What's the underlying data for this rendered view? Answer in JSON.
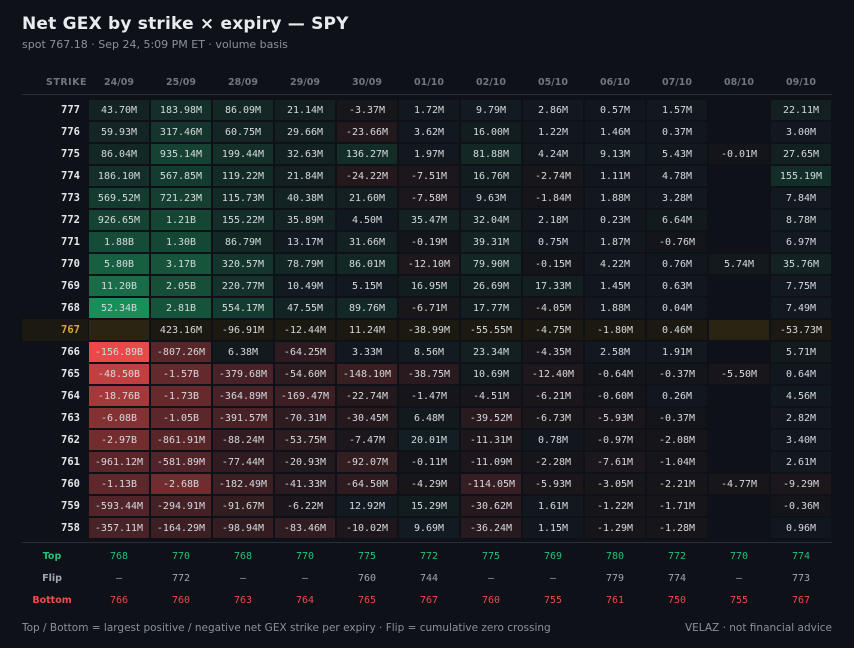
{
  "title": "Net GEX by strike × expiry — SPY",
  "subtitle": "spot 767.18  ·  Sep 24, 5:09 PM ET  ·  volume basis",
  "footer_left": "Top / Bottom = largest positive / negative net GEX strike per expiry  ·  Flip = cumulative zero crossing",
  "footer_right": "VELAZ  ·  not financial advice",
  "colors": {
    "background": "#0e1117",
    "positive": "#1c8f5a",
    "negative": "#e84a4a",
    "spot_row": "#1c1a10",
    "spot_text": "#d4a93a",
    "top": "#26c07a",
    "bottom": "#ef4c4c"
  },
  "chart_data": {
    "type": "heatmap",
    "title": "Net GEX by strike × expiry — SPY",
    "strike_header": "STRIKE",
    "expiries": [
      "24/09",
      "25/09",
      "28/09",
      "29/09",
      "30/09",
      "01/10",
      "02/10",
      "05/10",
      "06/10",
      "07/10",
      "08/10",
      "09/10"
    ],
    "spot_strike": "767",
    "rows": [
      {
        "strike": "777",
        "cells": [
          "43.70M",
          "183.98M",
          "86.09M",
          "21.14M",
          "-3.37M",
          "1.72M",
          "9.79M",
          "2.86M",
          "0.57M",
          "1.57M",
          "",
          "22.11M"
        ]
      },
      {
        "strike": "776",
        "cells": [
          "59.93M",
          "317.46M",
          "60.75M",
          "29.66M",
          "-23.66M",
          "3.62M",
          "16.00M",
          "1.22M",
          "1.46M",
          "0.37M",
          "",
          "3.00M"
        ]
      },
      {
        "strike": "775",
        "cells": [
          "86.04M",
          "935.14M",
          "199.44M",
          "32.63M",
          "136.27M",
          "1.97M",
          "81.88M",
          "4.24M",
          "9.13M",
          "5.43M",
          "-0.01M",
          "27.65M"
        ]
      },
      {
        "strike": "774",
        "cells": [
          "186.10M",
          "567.85M",
          "119.22M",
          "21.84M",
          "-24.22M",
          "-7.51M",
          "16.76M",
          "-2.74M",
          "1.11M",
          "4.78M",
          "",
          "155.19M"
        ]
      },
      {
        "strike": "773",
        "cells": [
          "569.52M",
          "721.23M",
          "115.73M",
          "40.38M",
          "21.60M",
          "-7.58M",
          "9.63M",
          "-1.84M",
          "1.88M",
          "3.28M",
          "",
          "7.84M"
        ]
      },
      {
        "strike": "772",
        "cells": [
          "926.65M",
          "1.21B",
          "155.22M",
          "35.89M",
          "4.50M",
          "35.47M",
          "32.04M",
          "2.18M",
          "0.23M",
          "6.64M",
          "",
          "8.78M"
        ]
      },
      {
        "strike": "771",
        "cells": [
          "1.88B",
          "1.30B",
          "86.79M",
          "13.17M",
          "31.66M",
          "-0.19M",
          "39.31M",
          "0.75M",
          "1.87M",
          "-0.76M",
          "",
          "6.97M"
        ]
      },
      {
        "strike": "770",
        "cells": [
          "5.80B",
          "3.17B",
          "320.57M",
          "78.79M",
          "86.01M",
          "-12.10M",
          "79.90M",
          "-0.15M",
          "4.22M",
          "0.76M",
          "5.74M",
          "35.76M"
        ]
      },
      {
        "strike": "769",
        "cells": [
          "11.20B",
          "2.05B",
          "220.77M",
          "10.49M",
          "5.15M",
          "16.95M",
          "26.69M",
          "17.33M",
          "1.45M",
          "0.63M",
          "",
          "7.75M"
        ]
      },
      {
        "strike": "768",
        "cells": [
          "52.34B",
          "2.81B",
          "554.17M",
          "47.55M",
          "89.76M",
          "-6.71M",
          "17.77M",
          "-4.05M",
          "1.88M",
          "0.04M",
          "",
          "7.49M"
        ]
      },
      {
        "strike": "767",
        "cells": [
          "",
          "423.16M",
          "-96.91M",
          "-12.44M",
          "11.24M",
          "-38.99M",
          "-55.55M",
          "-4.75M",
          "-1.80M",
          "0.46M",
          "",
          "-53.73M"
        ]
      },
      {
        "strike": "766",
        "cells": [
          "-156.89B",
          "-807.26M",
          "6.38M",
          "-64.25M",
          "3.33M",
          "8.56M",
          "23.34M",
          "-4.35M",
          "2.58M",
          "1.91M",
          "",
          "5.71M"
        ]
      },
      {
        "strike": "765",
        "cells": [
          "-48.50B",
          "-1.57B",
          "-379.68M",
          "-54.60M",
          "-148.10M",
          "-38.75M",
          "10.69M",
          "-12.40M",
          "-0.64M",
          "-0.37M",
          "-5.50M",
          "0.64M"
        ]
      },
      {
        "strike": "764",
        "cells": [
          "-18.76B",
          "-1.73B",
          "-364.89M",
          "-169.47M",
          "-22.74M",
          "-1.47M",
          "-4.51M",
          "-6.21M",
          "-0.60M",
          "0.26M",
          "",
          "4.56M"
        ]
      },
      {
        "strike": "763",
        "cells": [
          "-6.08B",
          "-1.05B",
          "-391.57M",
          "-70.31M",
          "-30.45M",
          "6.48M",
          "-39.52M",
          "-6.73M",
          "-5.93M",
          "-0.37M",
          "",
          "2.82M"
        ]
      },
      {
        "strike": "762",
        "cells": [
          "-2.97B",
          "-861.91M",
          "-88.24M",
          "-53.75M",
          "-7.47M",
          "20.01M",
          "-11.31M",
          "0.78M",
          "-0.97M",
          "-2.08M",
          "",
          "3.40M"
        ]
      },
      {
        "strike": "761",
        "cells": [
          "-961.12M",
          "-581.89M",
          "-77.44M",
          "-20.93M",
          "-92.07M",
          "-0.11M",
          "-11.09M",
          "-2.28M",
          "-7.61M",
          "-1.04M",
          "",
          "2.61M"
        ]
      },
      {
        "strike": "760",
        "cells": [
          "-1.13B",
          "-2.68B",
          "-182.49M",
          "-41.33M",
          "-64.50M",
          "-4.29M",
          "-114.05M",
          "-5.93M",
          "-3.05M",
          "-2.21M",
          "-4.77M",
          "-9.29M"
        ]
      },
      {
        "strike": "759",
        "cells": [
          "-593.44M",
          "-294.91M",
          "-91.67M",
          "-6.22M",
          "12.92M",
          "15.29M",
          "-30.62M",
          "1.61M",
          "-1.22M",
          "-1.71M",
          "",
          "-0.36M"
        ]
      },
      {
        "strike": "758",
        "cells": [
          "-357.11M",
          "-164.29M",
          "-98.94M",
          "-83.46M",
          "-10.02M",
          "9.69M",
          "-36.24M",
          "1.15M",
          "-1.29M",
          "-1.28M",
          "",
          "0.96M"
        ]
      }
    ],
    "summary": [
      {
        "label": "Top",
        "kind": "top",
        "values": [
          "768",
          "770",
          "768",
          "770",
          "775",
          "772",
          "775",
          "769",
          "780",
          "772",
          "770",
          "774"
        ]
      },
      {
        "label": "Flip",
        "kind": "flip",
        "values": [
          "–",
          "772",
          "–",
          "–",
          "760",
          "744",
          "–",
          "–",
          "779",
          "774",
          "–",
          "773"
        ]
      },
      {
        "label": "Bottom",
        "kind": "bottom",
        "values": [
          "766",
          "760",
          "763",
          "764",
          "765",
          "767",
          "760",
          "755",
          "761",
          "750",
          "755",
          "767"
        ]
      }
    ]
  }
}
